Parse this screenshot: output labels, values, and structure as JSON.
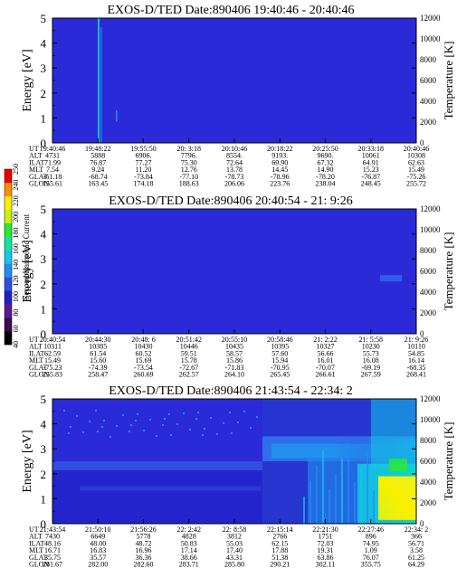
{
  "chart_data": [
    {
      "type": "heatmap",
      "title": "EXOS-D/TED   Date:890406   19:40:46 - 20:40:46",
      "ylabel": "Energy [eV]",
      "y2label": "Temperature [K]",
      "ylim": [
        0,
        5
      ],
      "y2lim": [
        0,
        12000
      ],
      "yticks": [
        "0",
        "1",
        "2",
        "3",
        "4",
        "5"
      ],
      "y2ticks": [
        "0",
        "2000",
        "4000",
        "6000",
        "8000",
        "10000",
        "12000"
      ],
      "table": {
        "rows": [
          "UT",
          "ALT",
          "ILAT",
          "MLT",
          "GLAT",
          "GLON"
        ],
        "columns": [
          [
            "19:40:46",
            "4731",
            "71.99",
            "7.54",
            "-61.18",
            "155.61"
          ],
          [
            "19:48:22",
            "5888",
            "76.87",
            "9.24",
            "-68.74",
            "163.45"
          ],
          [
            "19:55:50",
            "6906.",
            "77.27",
            "11.20",
            "-73.84",
            "174.18"
          ],
          [
            "20: 3:18",
            "7796.",
            "75.30",
            "12.76",
            "-77.10",
            "188.63"
          ],
          [
            "20:10:46",
            "8554.",
            "72.64",
            "13.78",
            "-78.73",
            "206.06"
          ],
          [
            "20:18:22",
            "9193.",
            "69.90",
            "14.45",
            "-78.96",
            "223.76"
          ],
          [
            "20:25:50",
            "9690.",
            "67.32",
            "14.90",
            "-78.20",
            "238.04"
          ],
          [
            "20:33:18",
            "10061",
            "64.91",
            "15.23",
            "-76.87",
            "248.45"
          ],
          [
            "20:40:46",
            "10308",
            "62.63",
            "15.49",
            "-75.26",
            "255.72"
          ]
        ]
      }
    },
    {
      "type": "heatmap",
      "title": "EXOS-D/TED   Date:890406   20:40:54 - 21: 9:26",
      "ylabel": "Energy [eV]",
      "y2label": "Temperature [K]",
      "ylim": [
        0,
        5
      ],
      "y2lim": [
        0,
        12000
      ],
      "yticks": [
        "0",
        "1",
        "2",
        "3",
        "4",
        "5"
      ],
      "y2ticks": [
        "0",
        "2000",
        "4000",
        "6000",
        "8000",
        "10000",
        "12000"
      ],
      "table": {
        "rows": [
          "UT",
          "ALT",
          "ILAT",
          "MLT",
          "GLAT",
          "GLON"
        ],
        "columns": [
          [
            "20:40:54",
            "10311",
            "62.59",
            "15.49",
            "-75.23",
            "255.83"
          ],
          [
            "20:44:30",
            "10385",
            "61.54",
            "15.60",
            "-74.39",
            "258.47"
          ],
          [
            "20:48: 6",
            "10430",
            "60.52",
            "15.69",
            "-73.54",
            "260.69"
          ],
          [
            "20:51:42",
            "10446",
            "59.51",
            "15.78",
            "-72.67",
            "262.57"
          ],
          [
            "20:55:10",
            "10435",
            "58.57",
            "15.86",
            "-71.83",
            "264.10"
          ],
          [
            "20:58:46",
            "10395",
            "57.60",
            "15.94",
            "-70.95",
            "265.45"
          ],
          [
            "21: 2:22",
            "10327",
            "56.66",
            "16.01",
            "-70.07",
            "266.61"
          ],
          [
            "21: 5:58",
            "10230",
            "55.73",
            "16.08",
            "-69.19",
            "267.59"
          ],
          [
            "21: 9:26",
            "10110",
            "54.85",
            "16.14",
            "-68.35",
            "268.41"
          ]
        ]
      }
    },
    {
      "type": "heatmap",
      "title": "EXOS-D/TED   Date:890406   21:43:54 - 22:34: 2",
      "ylabel": "Energy [eV]",
      "y2label": "Temperature [K]",
      "ylim": [
        0,
        5
      ],
      "y2lim": [
        0,
        12000
      ],
      "yticks": [
        "0",
        "1",
        "2",
        "3",
        "4",
        "5"
      ],
      "y2ticks": [
        "0",
        "2000",
        "4000",
        "6000",
        "8000",
        "10000",
        "12000"
      ],
      "table": {
        "rows": [
          "UT",
          "ALT",
          "ILAT",
          "MLT",
          "GLAT",
          "GLON"
        ],
        "columns": [
          [
            "21:43:54",
            "7430",
            "48.16",
            "16.71",
            "35.75",
            "281.67"
          ],
          [
            "21:50:10",
            "6649",
            "48.00",
            "16.83",
            "35.57",
            "282.00"
          ],
          [
            "21:56:26",
            "5778",
            "48.72",
            "16.96",
            "36.36",
            "282.60"
          ],
          [
            "22: 2:42",
            "4828",
            "50.83",
            "17.14",
            "38.66",
            "283.71"
          ],
          [
            "22: 8:58",
            "3812",
            "55.03",
            "17.40",
            "43.31",
            "285.80"
          ],
          [
            "22:15:14",
            "2766",
            "62.15",
            "17.88",
            "51.38",
            "290.21"
          ],
          [
            "22:21:30",
            "1751",
            "72.03",
            "19.31",
            "63.86",
            "302.11"
          ],
          [
            "22:27:46",
            "896",
            "74.95",
            "1.09",
            "76.07",
            "355.75"
          ],
          [
            "22:34: 2",
            "366",
            "56.71",
            "3.58",
            "61.25",
            "64.29"
          ]
        ]
      }
    }
  ],
  "colorbar": {
    "label": "Second Harmonic Current",
    "ticks": [
      "40",
      "60",
      "80",
      "100",
      "120",
      "140",
      "160",
      "180",
      "200",
      "220",
      "240",
      "250"
    ]
  },
  "colors": {
    "background_fill": "#2a2ad8",
    "palette": [
      "#000000",
      "#3b0a52",
      "#5a1896",
      "#2020c8",
      "#2f4fe0",
      "#1f8ff0",
      "#13c8e8",
      "#10e4a0",
      "#28e838",
      "#c8f010",
      "#f8f000",
      "#f89000",
      "#e80000"
    ]
  }
}
